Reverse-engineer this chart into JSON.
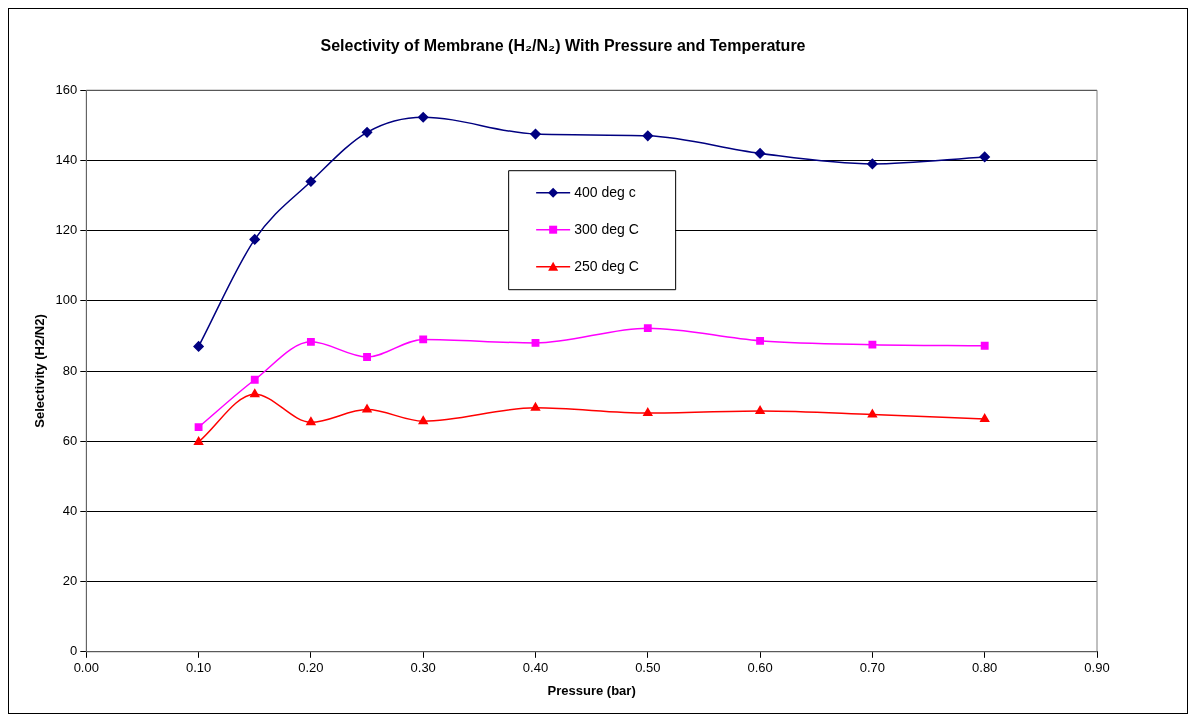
{
  "chart_data": {
    "type": "line",
    "title": "Selectivity of Membrane (H₂/N₂) With Pressure and Temperature",
    "xlabel": "Pressure (bar)",
    "ylabel": "Selectivity (H2/N2)",
    "x": [
      0.1,
      0.15,
      0.2,
      0.25,
      0.3,
      0.4,
      0.5,
      0.6,
      0.7,
      0.8
    ],
    "series": [
      {
        "name": "400 deg c",
        "color": "#000080",
        "marker": "diamond",
        "values": [
          87,
          117.5,
          134,
          148,
          152.3,
          147.5,
          147,
          142,
          139,
          141
        ]
      },
      {
        "name": "300 deg C",
        "color": "#ff00ff",
        "marker": "square",
        "values": [
          64,
          77.5,
          88.3,
          84,
          89,
          88,
          92.2,
          88.6,
          87.5,
          87.2
        ]
      },
      {
        "name": "250 deg C",
        "color": "#ff0000",
        "marker": "triangle",
        "values": [
          59.8,
          73.4,
          65.4,
          69,
          65.7,
          69.5,
          68,
          68.6,
          67.6,
          66.3
        ]
      }
    ],
    "xlim": [
      0,
      0.9
    ],
    "xticks": [
      {
        "value": 0,
        "label": "0.00"
      },
      {
        "value": 0.1,
        "label": "0.10"
      },
      {
        "value": 0.2,
        "label": "0.20"
      },
      {
        "value": 0.3,
        "label": "0.30"
      },
      {
        "value": 0.4,
        "label": "0.40"
      },
      {
        "value": 0.5,
        "label": "0.50"
      },
      {
        "value": 0.6,
        "label": "0.60"
      },
      {
        "value": 0.7,
        "label": "0.70"
      },
      {
        "value": 0.8,
        "label": "0.80"
      },
      {
        "value": 0.9,
        "label": "0.90"
      }
    ],
    "ylim": [
      0,
      160
    ],
    "yticks": [
      0,
      20,
      40,
      60,
      80,
      100,
      120,
      140,
      160
    ],
    "grid": "y",
    "legend": "top center",
    "line_style": "solid"
  }
}
